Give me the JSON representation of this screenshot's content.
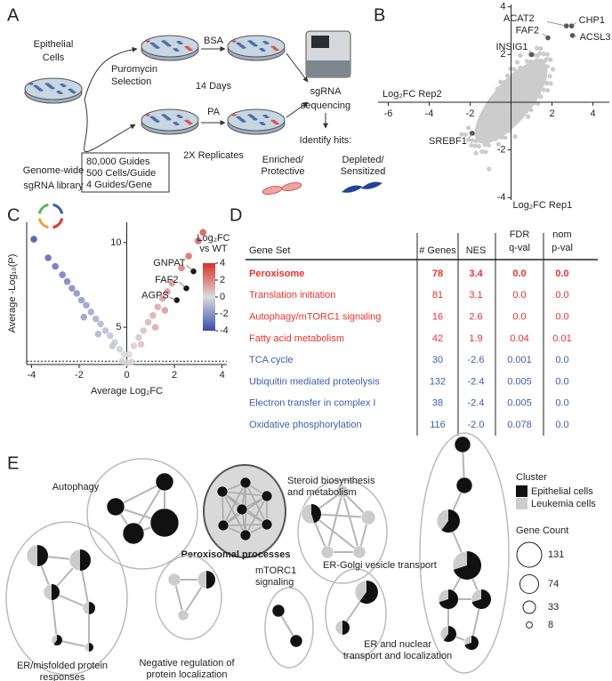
{
  "figure": {
    "panel_letters": [
      "A",
      "B",
      "C",
      "D",
      "E"
    ]
  },
  "panel_a": {
    "cells_label": [
      "Epithelial",
      "Cells"
    ],
    "library_label": [
      "Genome-wide",
      "sgRNA library"
    ],
    "library_specs": [
      "80,000 Guides",
      "500 Cells/Guide",
      "4 Guides/Gene"
    ],
    "selection_label": [
      "Puromycin",
      "Selection"
    ],
    "control_label": "BSA",
    "duration_label": "14 Days",
    "treatment_label": "PA",
    "replicates_label": "2X Replicates",
    "sequencing_label": [
      "sgRNA",
      "sequencing"
    ],
    "hits_label": "Identify hits:",
    "enriched_label": [
      "Enriched/",
      "Protective"
    ],
    "depleted_label": [
      "Depleted/",
      "Sensitized"
    ]
  },
  "chart_data": [
    {
      "type": "scatter",
      "x_label": "Log₂FC Rep2",
      "y_label": "Log₂FC Rep1",
      "xlim": [
        -6.5,
        4.8
      ],
      "ylim": [
        -4.1,
        4.1
      ],
      "xticks": [
        -6,
        -4,
        -2,
        2,
        4
      ],
      "yticks": [
        -4,
        -2,
        2,
        4
      ],
      "labels": [
        "ACAT2",
        "CHP1",
        "FAF2",
        "ACSL3",
        "INSIG1",
        "SREBF1"
      ],
      "x": [
        2.7,
        2.96,
        1.8,
        3.0,
        1.0,
        -1.9
      ],
      "values": [
        3.2,
        3.2,
        2.7,
        2.8,
        2.0,
        -1.3
      ],
      "color": "#555555",
      "cloud_color": "#cccccc"
    },
    {
      "type": "volcano",
      "x_label": "Average Log₂FC",
      "y_label": "Average -Log₁₀(P)",
      "xlim": [
        -4.2,
        4.2
      ],
      "ylim": [
        2.8,
        11.2
      ],
      "xticks": [
        -4,
        -2,
        0,
        2,
        4
      ],
      "yticks": [
        5,
        10
      ],
      "threshold": 3,
      "x": [
        -3.9,
        -3.3,
        -3.0,
        -2.7,
        -2.5,
        -2.3,
        -2.1,
        -1.9,
        -1.7,
        -1.5,
        -1.3,
        -1.1,
        -0.9,
        -0.7,
        -0.5,
        -0.3,
        -0.1,
        -1.8,
        -1.2,
        -0.6,
        0.1,
        0.3,
        0.5,
        0.7,
        0.9,
        1.1,
        1.3,
        1.5,
        1.7,
        1.9,
        2.3,
        2.6,
        3.0,
        3.2,
        1.6,
        1.2,
        0.6,
        0.0,
        -0.2,
        0.2
      ],
      "values": [
        10.2,
        9.1,
        8.6,
        8.1,
        7.7,
        7.3,
        7.0,
        6.6,
        6.3,
        5.9,
        5.5,
        5.2,
        4.8,
        4.5,
        4.1,
        3.7,
        3.4,
        5.6,
        4.6,
        3.9,
        3.4,
        3.9,
        4.4,
        4.8,
        5.3,
        5.7,
        6.2,
        6.7,
        7.1,
        7.6,
        8.5,
        9.2,
        10.1,
        10.6,
        6.0,
        5.0,
        4.0,
        2.9,
        3.0,
        2.95
      ],
      "colorscale": [
        "#3b4ba8",
        "#dcdcdc",
        "#d7302a"
      ],
      "highlights": {
        "labels": [
          "GNPAT",
          "FAF2",
          "AGPS"
        ],
        "x": [
          2.8,
          2.5,
          2.1
        ],
        "values": [
          8.3,
          7.3,
          6.6
        ],
        "color": "#111111"
      },
      "colorbar": {
        "title": [
          "Log₂FC",
          "vs WT"
        ],
        "lim": [
          -4,
          4
        ],
        "ticks": [
          4,
          2,
          0,
          -2,
          -4
        ]
      }
    }
  ],
  "table": {
    "header": [
      [
        "Gene Set"
      ],
      [
        "# Genes"
      ],
      [
        "NES"
      ],
      [
        "FDR",
        "q-val"
      ],
      [
        "nom",
        "p-val"
      ]
    ],
    "rows": [
      [
        "Peroxisome",
        "78",
        "3.4",
        "0.0",
        "0.0"
      ],
      [
        "Translation initiation",
        "81",
        "3.1",
        "0.0",
        "0.0"
      ],
      [
        "Autophagy/mTORC1 signaling",
        "16",
        "2.6",
        "0.0",
        "0.0"
      ],
      [
        "Fatty acid metabolism",
        "42",
        "1.9",
        "0.04",
        "0.01"
      ],
      [
        "TCA cycle",
        "30",
        "-2.6",
        "0.001",
        "0.0"
      ],
      [
        "Ubiquitin mediated proteolysis",
        "132",
        "-2.4",
        "0.005",
        "0.0"
      ],
      [
        "Electron transfer in complex I",
        "38",
        "-2.4",
        "0.005",
        "0.0"
      ],
      [
        "Oxidative phosphorylation",
        "116",
        "-2.0",
        "0.078",
        "0.0"
      ]
    ],
    "row_colors": [
      "#e8322a",
      "#e8322a",
      "#e8322a",
      "#e8322a",
      "#3a5fae",
      "#3a5fae",
      "#3a5fae",
      "#3a5fae"
    ],
    "bold_rows": [
      0
    ]
  },
  "network": {
    "clusters": [
      {
        "label": [
          "Autophagy"
        ]
      },
      {
        "label": [
          "Peroxisomal processes"
        ]
      },
      {
        "label": [
          "Steroid biosynthesis",
          "and metabolism"
        ]
      },
      {
        "label": [
          "ER/misfolded protein",
          "responses"
        ]
      },
      {
        "label": [
          "Negative regulation of",
          "protein localization"
        ]
      },
      {
        "label": [
          "mTORC1",
          "signaling"
        ]
      },
      {
        "label": [
          "ER-Golgi vesicle transport"
        ]
      },
      {
        "label": [
          "ER and nuclear",
          "transport and localization"
        ]
      }
    ],
    "bold_clusters": [
      1
    ],
    "legend": {
      "cluster_title": "Cluster",
      "cluster_items": [
        "Epithelial cells",
        "Leukemia cells"
      ],
      "cluster_colors": [
        "#111111",
        "#cccccc"
      ],
      "size_title": "Gene Count",
      "sizes": [
        131,
        74,
        33,
        8
      ]
    }
  }
}
